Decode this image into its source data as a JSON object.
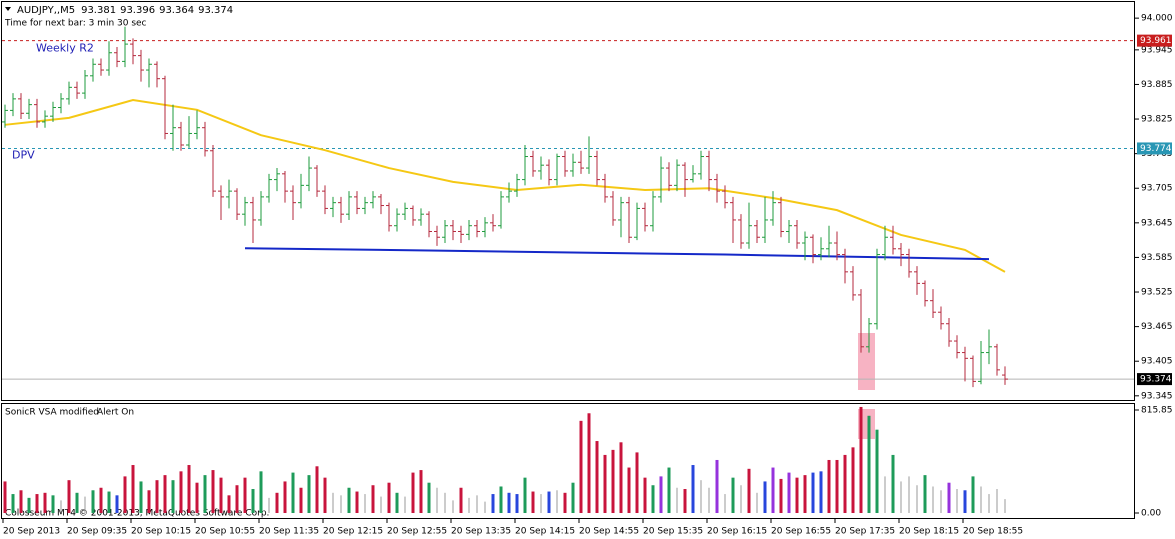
{
  "chart_data": [
    {
      "type": "ohlc",
      "title": "AUDJPY,,M5",
      "timer": "Time for next bar: 3 min 30 sec",
      "copyright": "Colosseum MT4 © 2001-2013, MetaQuotes Software Corp.",
      "up_color": "#1e9b3c",
      "down_color": "#b4283c",
      "categories": [
        "20 Sep 2013",
        null,
        null,
        null,
        null,
        null,
        null,
        null,
        "20 Sep 09:35",
        null,
        null,
        null,
        null,
        null,
        null,
        null,
        "20 Sep 10:15",
        null,
        null,
        null,
        null,
        null,
        null,
        null,
        "20 Sep 10:55",
        null,
        null,
        null,
        null,
        null,
        null,
        null,
        "20 Sep 11:35",
        null,
        null,
        null,
        null,
        null,
        null,
        null,
        "20 Sep 12:15",
        null,
        null,
        null,
        null,
        null,
        null,
        null,
        "20 Sep 12:55",
        null,
        null,
        null,
        null,
        null,
        null,
        null,
        "20 Sep 13:35",
        null,
        null,
        null,
        null,
        null,
        null,
        null,
        "20 Sep 14:15",
        null,
        null,
        null,
        null,
        null,
        null,
        null,
        "20 Sep 14:55",
        null,
        null,
        null,
        null,
        null,
        null,
        null,
        "20 Sep 15:35",
        null,
        null,
        null,
        null,
        null,
        null,
        null,
        "20 Sep 16:15",
        null,
        null,
        null,
        null,
        null,
        null,
        null,
        "20 Sep 16:55",
        null,
        null,
        null,
        null,
        null,
        null,
        null,
        "20 Sep 17:35",
        null,
        null,
        null,
        null,
        null,
        null,
        null,
        "20 Sep 18:15",
        null,
        null,
        null,
        null,
        null,
        null,
        null,
        "20 Sep 18:55",
        null,
        null,
        null,
        null,
        null
      ],
      "open": [
        93.82,
        93.84,
        93.86,
        93.835,
        93.85,
        93.82,
        93.83,
        93.845,
        93.86,
        93.88,
        93.87,
        93.9,
        93.92,
        93.91,
        93.94,
        93.925,
        93.955,
        93.935,
        93.91,
        93.92,
        93.895,
        93.8,
        93.81,
        93.78,
        93.8,
        93.81,
        93.77,
        93.7,
        93.69,
        93.7,
        93.66,
        93.68,
        93.65,
        93.69,
        93.72,
        93.73,
        93.7,
        93.68,
        93.71,
        93.74,
        93.7,
        93.67,
        93.68,
        93.66,
        93.69,
        93.67,
        93.68,
        93.69,
        93.675,
        93.64,
        93.66,
        93.67,
        93.65,
        93.66,
        93.63,
        93.62,
        93.64,
        93.63,
        93.625,
        93.64,
        93.63,
        93.645,
        93.64,
        93.69,
        93.7,
        93.72,
        93.76,
        93.735,
        93.745,
        93.72,
        93.76,
        93.735,
        93.75,
        93.74,
        93.76,
        93.72,
        93.69,
        93.65,
        93.68,
        93.62,
        93.67,
        93.64,
        93.69,
        93.74,
        93.71,
        93.745,
        93.72,
        93.73,
        93.76,
        93.72,
        93.7,
        93.68,
        93.65,
        93.61,
        93.64,
        93.62,
        93.65,
        93.68,
        93.63,
        93.64,
        93.61,
        93.62,
        93.59,
        93.6,
        93.61,
        93.59,
        93.56,
        93.52,
        93.43,
        93.47,
        93.59,
        93.62,
        93.6,
        93.59,
        93.56,
        93.54,
        93.51,
        93.49,
        93.47,
        93.44,
        93.42,
        93.41,
        93.37,
        93.42,
        93.43,
        93.381
      ],
      "high": [
        93.85,
        93.87,
        93.87,
        93.86,
        93.86,
        93.84,
        93.855,
        93.87,
        93.89,
        93.89,
        93.91,
        93.93,
        93.93,
        93.96,
        93.95,
        93.985,
        93.965,
        93.945,
        93.93,
        93.925,
        93.9,
        93.85,
        93.82,
        93.83,
        93.84,
        93.82,
        93.78,
        93.71,
        93.72,
        93.705,
        93.69,
        93.69,
        93.7,
        93.73,
        93.74,
        93.735,
        93.71,
        93.73,
        93.76,
        93.745,
        93.71,
        93.69,
        93.69,
        93.7,
        93.7,
        93.69,
        93.7,
        93.695,
        93.68,
        93.67,
        93.68,
        93.675,
        93.67,
        93.665,
        93.64,
        93.65,
        93.65,
        93.64,
        93.65,
        93.65,
        93.655,
        93.66,
        93.7,
        93.715,
        93.73,
        93.78,
        93.77,
        93.76,
        93.755,
        93.765,
        93.77,
        93.765,
        93.77,
        93.795,
        93.77,
        93.73,
        93.7,
        93.69,
        93.69,
        93.68,
        93.68,
        93.7,
        93.76,
        93.75,
        93.755,
        93.75,
        93.745,
        93.77,
        93.77,
        93.73,
        93.71,
        93.69,
        93.66,
        93.68,
        93.65,
        93.69,
        93.7,
        93.69,
        93.65,
        93.65,
        93.63,
        93.625,
        93.62,
        93.64,
        93.63,
        93.6,
        93.57,
        93.53,
        93.48,
        93.6,
        93.64,
        93.64,
        93.61,
        93.6,
        93.57,
        93.545,
        93.53,
        93.5,
        93.48,
        93.45,
        93.43,
        93.415,
        93.44,
        93.46,
        93.435,
        93.396
      ],
      "low": [
        93.81,
        93.83,
        93.825,
        93.825,
        93.81,
        93.81,
        93.82,
        93.835,
        93.85,
        93.86,
        93.86,
        93.89,
        93.9,
        93.9,
        93.915,
        93.915,
        93.92,
        93.89,
        93.88,
        93.88,
        93.79,
        93.77,
        93.77,
        93.775,
        93.79,
        93.76,
        93.69,
        93.65,
        93.67,
        93.65,
        93.64,
        93.61,
        93.64,
        93.68,
        93.7,
        93.68,
        93.65,
        93.67,
        93.7,
        93.69,
        93.66,
        93.655,
        93.645,
        93.65,
        93.66,
        93.66,
        93.67,
        93.66,
        93.63,
        93.63,
        93.65,
        93.64,
        93.64,
        93.62,
        93.605,
        93.61,
        93.615,
        93.61,
        93.615,
        93.62,
        93.62,
        93.63,
        93.635,
        93.68,
        93.69,
        93.71,
        93.725,
        93.72,
        93.71,
        93.71,
        93.725,
        93.725,
        93.73,
        93.73,
        93.71,
        93.68,
        93.64,
        93.62,
        93.61,
        93.615,
        93.63,
        93.63,
        93.68,
        93.7,
        93.7,
        93.69,
        93.715,
        93.72,
        93.7,
        93.68,
        93.67,
        93.61,
        93.6,
        93.6,
        93.61,
        93.61,
        93.64,
        93.62,
        93.61,
        93.6,
        93.58,
        93.575,
        93.58,
        93.585,
        93.58,
        93.54,
        93.51,
        93.42,
        93.42,
        93.46,
        93.58,
        93.59,
        93.57,
        93.55,
        93.52,
        93.5,
        93.48,
        93.46,
        93.43,
        93.41,
        93.37,
        93.36,
        93.365,
        93.4,
        93.38,
        93.364
      ],
      "close": [
        93.84,
        93.86,
        93.835,
        93.85,
        93.82,
        93.83,
        93.845,
        93.86,
        93.88,
        93.87,
        93.9,
        93.92,
        93.91,
        93.94,
        93.925,
        93.955,
        93.935,
        93.91,
        93.92,
        93.895,
        93.8,
        93.81,
        93.78,
        93.8,
        93.81,
        93.77,
        93.7,
        93.69,
        93.7,
        93.66,
        93.68,
        93.65,
        93.69,
        93.72,
        93.73,
        93.7,
        93.68,
        93.71,
        93.74,
        93.7,
        93.67,
        93.68,
        93.66,
        93.69,
        93.67,
        93.68,
        93.69,
        93.675,
        93.64,
        93.66,
        93.67,
        93.65,
        93.66,
        93.63,
        93.62,
        93.64,
        93.63,
        93.625,
        93.64,
        93.63,
        93.645,
        93.64,
        93.69,
        93.7,
        93.72,
        93.76,
        93.735,
        93.745,
        93.72,
        93.76,
        93.735,
        93.75,
        93.74,
        93.76,
        93.72,
        93.69,
        93.65,
        93.68,
        93.62,
        93.67,
        93.64,
        93.69,
        93.74,
        93.71,
        93.745,
        93.72,
        93.73,
        93.76,
        93.72,
        93.7,
        93.68,
        93.65,
        93.61,
        93.64,
        93.62,
        93.65,
        93.68,
        93.63,
        93.64,
        93.61,
        93.62,
        93.59,
        93.6,
        93.61,
        93.59,
        93.56,
        93.52,
        93.43,
        93.47,
        93.59,
        93.62,
        93.6,
        93.59,
        93.56,
        93.54,
        93.51,
        93.49,
        93.47,
        93.44,
        93.42,
        93.41,
        93.37,
        93.42,
        93.43,
        93.39,
        93.374
      ],
      "ylim": [
        93.336,
        94.028
      ],
      "yticks": [
        {
          "value": 94,
          "label": "94.000"
        },
        93.945,
        93.885,
        93.825,
        93.765,
        93.705,
        93.645,
        93.585,
        93.525,
        93.465,
        93.405,
        93.345
      ],
      "levels": [
        {
          "name": "Weekly R2",
          "value": 93.961,
          "color": "#c81e1e",
          "text_color": "#1e1eb4"
        },
        {
          "name": "DPV",
          "value": 93.774,
          "color": "#2896b4",
          "text_color": "#1e1eb4"
        }
      ],
      "current_color": "#b4b4b4",
      "ma": {
        "color": "#f5c814",
        "x": [
          0,
          8,
          16,
          24,
          32,
          40,
          48,
          56,
          64,
          72,
          80,
          88,
          96,
          104,
          112,
          120,
          125
        ],
        "values": [
          93.815,
          93.827,
          93.858,
          93.841,
          93.797,
          93.771,
          93.74,
          93.716,
          93.702,
          93.711,
          93.702,
          93.705,
          93.688,
          93.667,
          93.624,
          93.598,
          93.56
        ]
      },
      "support": {
        "color": "#1428c8",
        "x": [
          30,
          53,
          90,
          123
        ],
        "values": [
          93.601,
          93.597,
          93.59,
          93.582
        ]
      }
    },
    {
      "type": "bar",
      "title": "SonicR VSA modified",
      "status": "Alert On",
      "values": [
        250,
        150,
        180,
        120,
        150,
        160,
        140,
        100,
        260,
        160,
        130,
        180,
        200,
        170,
        140,
        290,
        380,
        250,
        180,
        260,
        300,
        260,
        330,
        380,
        240,
        300,
        340,
        280,
        140,
        220,
        280,
        190,
        330,
        120,
        160,
        250,
        320,
        200,
        300,
        370,
        280,
        160,
        140,
        200,
        170,
        150,
        220,
        130,
        240,
        160,
        130,
        320,
        340,
        240,
        200,
        160,
        100,
        200,
        120,
        140,
        90,
        150,
        210,
        160,
        150,
        280,
        170,
        150,
        170,
        180,
        160,
        240,
        730,
        790,
        570,
        460,
        500,
        560,
        360,
        480,
        280,
        220,
        290,
        360,
        200,
        190,
        380,
        260,
        200,
        420,
        150,
        280,
        220,
        350,
        160,
        250,
        360,
        270,
        320,
        280,
        300,
        320,
        330,
        420,
        420,
        460,
        520,
        840,
        770,
        660,
        290,
        460,
        250,
        290,
        220,
        300,
        210,
        180,
        240,
        190,
        180,
        290,
        210,
        150,
        190,
        110
      ],
      "colors": [
        "#c8143c",
        "#1e9b5a",
        "#c8143c",
        "#1e9b5a",
        "#c8143c",
        "#c8143c",
        "#1e9b5a",
        "#999999",
        "#c8143c",
        "#1e9b5a",
        "#999999",
        "#1e9b5a",
        "#c8143c",
        "#1e9b5a",
        "#2846dc",
        "#c8143c",
        "#c8143c",
        "#1e9b5a",
        "#c8143c",
        "#c8143c",
        "#c8143c",
        "#1e9b5a",
        "#c8143c",
        "#c8143c",
        "#c8143c",
        "#1e9b5a",
        "#c8143c",
        "#c8143c",
        "#c8143c",
        "#c8143c",
        "#c8143c",
        "#1e9b5a",
        "#1e9b5a",
        "#999999",
        "#c8143c",
        "#c8143c",
        "#1e9b5a",
        "#c8143c",
        "#1e9b5a",
        "#c8143c",
        "#c8143c",
        "#999999",
        "#999999",
        "#1e9b5a",
        "#c8143c",
        "#999999",
        "#c8143c",
        "#999999",
        "#c8143c",
        "#1e9b5a",
        "#999999",
        "#c8143c",
        "#c8143c",
        "#1e9b5a",
        "#999999",
        "#999999",
        "#999999",
        "#c8143c",
        "#999999",
        "#999999",
        "#999999",
        "#2846dc",
        "#1e9b5a",
        "#2846dc",
        "#2846dc",
        "#1e9b5a",
        "#c8143c",
        "#999999",
        "#2846dc",
        "#999999",
        "#c8143c",
        "#1e9b5a",
        "#c8143c",
        "#c8143c",
        "#c8143c",
        "#c8143c",
        "#c8143c",
        "#c8143c",
        "#c8143c",
        "#c8143c",
        "#c8143c",
        "#1e9b5a",
        "#9632dc",
        "#1e9b5a",
        "#999999",
        "#c8143c",
        "#2846dc",
        "#999999",
        "#999999",
        "#9632dc",
        "#999999",
        "#1e9b5a",
        "#999999",
        "#c8143c",
        "#999999",
        "#2846dc",
        "#9632dc",
        "#c8143c",
        "#9632dc",
        "#c8143c",
        "#c8143c",
        "#2846dc",
        "#2846dc",
        "#c8143c",
        "#c8143c",
        "#c8143c",
        "#c8143c",
        "#c8143c",
        "#1e9b5a",
        "#1e9b5a",
        "#999999",
        "#1e9b5a",
        "#999999",
        "#999999",
        "#999999",
        "#1e9b5a",
        "#999999",
        "#999999",
        "#9632dc",
        "#999999",
        "#2846dc",
        "#1e9b5a",
        "#999999",
        "#999999",
        "#999999",
        "#999999"
      ],
      "ylim": [
        -47.5,
        863.4
      ],
      "yticks": [
        815.85,
        {
          "value": 0,
          "label": "0.00"
        }
      ]
    }
  ]
}
